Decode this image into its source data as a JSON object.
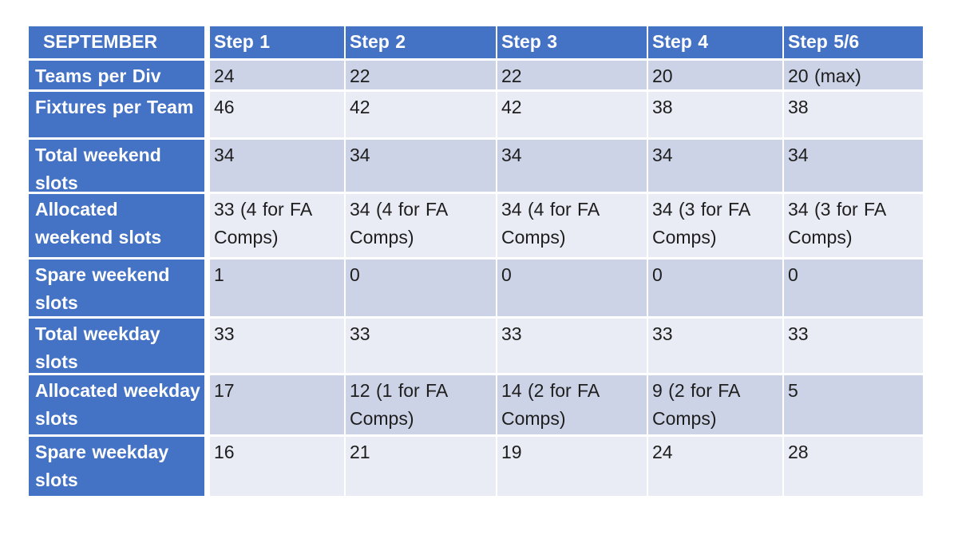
{
  "table": {
    "title": "SEPTEMBER",
    "header": [
      "SEPTEMBER",
      "Step 1",
      "Step 2",
      "Step 3",
      "Step 4",
      "Step 5/6"
    ],
    "rows": [
      {
        "label": "Teams per Div",
        "values": [
          "24",
          "22",
          "22",
          "20",
          "20 (max)"
        ]
      },
      {
        "label": "Fixtures per Team",
        "values": [
          "46",
          "42",
          "42",
          "38",
          "38"
        ]
      },
      {
        "label": "Total weekend slots",
        "values": [
          "34",
          "34",
          "34",
          "34",
          "34"
        ]
      },
      {
        "label": "Allocated weekend slots",
        "values": [
          "33 (4 for FA Comps)",
          "34 (4 for FA Comps)",
          "34 (4 for FA Comps)",
          "34 (3 for FA Comps)",
          "34 (3 for FA Comps)"
        ]
      },
      {
        "label": "Spare weekend slots",
        "values": [
          "1",
          "0",
          "0",
          "0",
          "0"
        ]
      },
      {
        "label": "Total weekday slots",
        "values": [
          "33",
          "33",
          "33",
          "33",
          "33"
        ]
      },
      {
        "label": "Allocated weekday slots",
        "values": [
          "17",
          "12 (1 for FA Comps)",
          "14 (2 for FA Comps)",
          "9 (2 for FA Comps)",
          "5"
        ]
      },
      {
        "label": "Spare weekday slots",
        "values": [
          "16",
          "21",
          "19",
          "24",
          "28"
        ]
      }
    ],
    "colors": {
      "header_bg": "#4472C4",
      "band_dark": "#CDD3E6",
      "band_light": "#E9EBF5",
      "header_text": "#FFFFFF",
      "cell_text": "#1E1E1E"
    }
  }
}
